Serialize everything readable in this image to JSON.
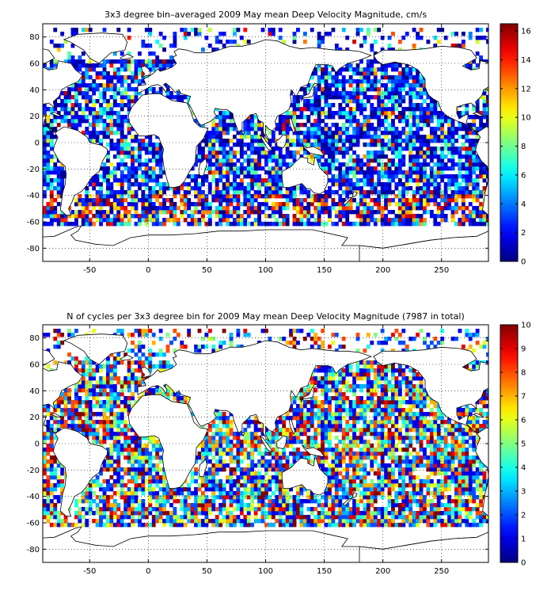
{
  "chart_data": [
    {
      "type": "heatmap",
      "title": "3x3 degree bin–averaged 2009 May mean Deep Velocity Magnitude, cm/s",
      "xlabel": "",
      "ylabel": "",
      "xlim": [
        -90,
        290
      ],
      "ylim": [
        -90,
        90
      ],
      "x_ticks": [
        -50,
        0,
        50,
        100,
        150,
        200,
        250
      ],
      "y_ticks": [
        80,
        60,
        40,
        20,
        0,
        -20,
        -40,
        -60,
        -80
      ],
      "colorbar": {
        "min": 0,
        "max": 16.5,
        "ticks": [
          0,
          2,
          4,
          6,
          8,
          10,
          12,
          14,
          16
        ]
      },
      "colormap": "jet",
      "grid": true,
      "bin_size_deg": 3
    },
    {
      "type": "heatmap",
      "title": "N of cycles per 3x3 degree bin for 2009 May mean Deep Velocity Magnitude (7987 in total)",
      "xlabel": "",
      "ylabel": "",
      "xlim": [
        -90,
        290
      ],
      "ylim": [
        -90,
        90
      ],
      "x_ticks": [
        -50,
        0,
        50,
        100,
        150,
        200,
        250
      ],
      "y_ticks": [
        80,
        60,
        40,
        20,
        0,
        -20,
        -40,
        -60,
        -80
      ],
      "colorbar": {
        "min": 0,
        "max": 10,
        "ticks": [
          0,
          1,
          2,
          3,
          4,
          5,
          6,
          7,
          8,
          9,
          10
        ]
      },
      "colormap": "jet",
      "grid": true,
      "bin_size_deg": 3
    }
  ]
}
